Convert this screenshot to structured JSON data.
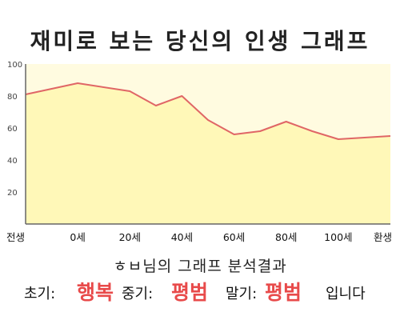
{
  "title": "재미로 보는 당신의 인생 그래프",
  "summary": {
    "name": "ㅎㅂ",
    "suffix": "님의 그래프 분석결과"
  },
  "result": {
    "early_label": "초기:",
    "early_value": "행복",
    "middle_label": "중기:",
    "middle_value": "평범",
    "late_label": "말기:",
    "late_value": "평범",
    "ending": "입니다"
  },
  "colors": {
    "line": "#e06666",
    "fill": "#fff8b8",
    "plot_bg": "#fffbe0",
    "value_text": "#e84a4a"
  },
  "chart_data": {
    "type": "area",
    "x_tick_labels": [
      "전생",
      "0세",
      "20세",
      "40세",
      "60세",
      "80세",
      "100세",
      "환생"
    ],
    "x": [
      -20,
      0,
      20,
      30,
      40,
      50,
      60,
      70,
      80,
      90,
      100,
      120
    ],
    "values": [
      81,
      88,
      83,
      74,
      80,
      65,
      56,
      58,
      64,
      58,
      53,
      55
    ],
    "xlim": [
      -20,
      120
    ],
    "ylim": [
      0,
      100
    ],
    "y_ticks": [
      20,
      40,
      60,
      80,
      100
    ],
    "grid": false,
    "legend": "none"
  }
}
